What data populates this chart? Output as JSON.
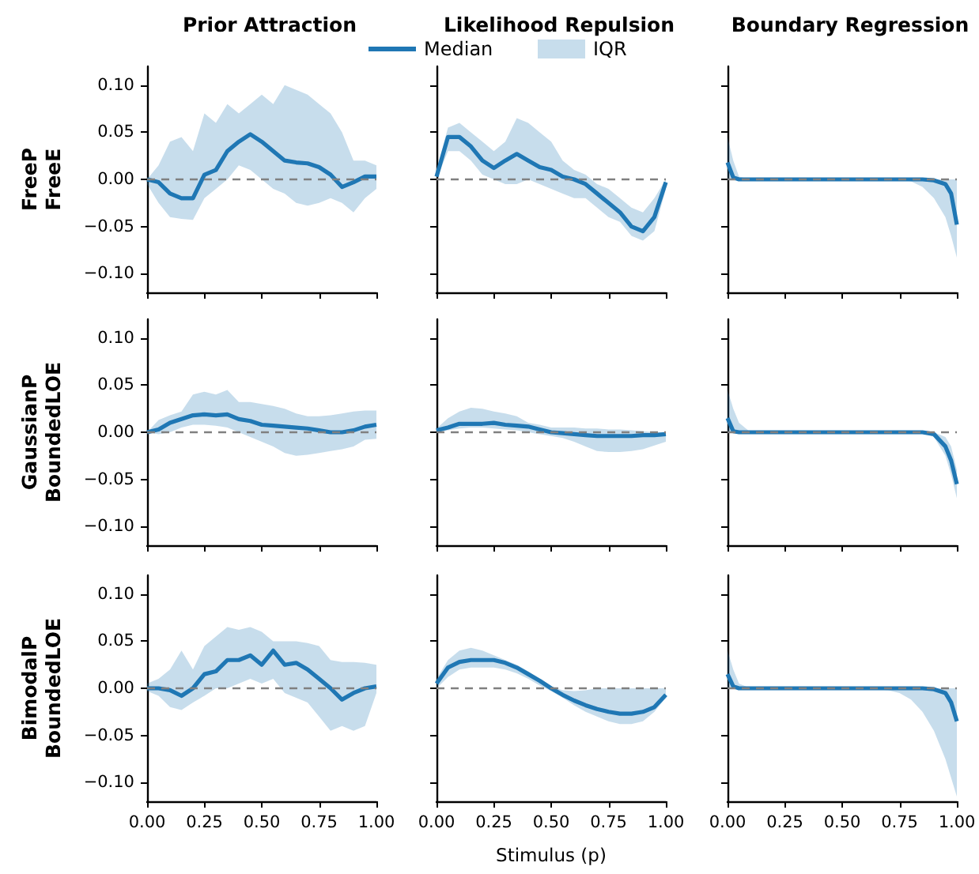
{
  "chart_data": [
    {
      "type": "line",
      "title": "Prior Attraction",
      "ylabel": "FreeP\nFreeE",
      "tick_labels": "y",
      "marker": "none",
      "grid": false,
      "x": [
        0,
        0.05,
        0.1,
        0.15,
        0.2,
        0.25,
        0.3,
        0.35,
        0.4,
        0.45,
        0.5,
        0.55,
        0.6,
        0.65,
        0.7,
        0.75,
        0.8,
        0.85,
        0.9,
        0.95,
        1
      ],
      "xlim": [
        0,
        1
      ],
      "xticks": [
        {
          "value": 0,
          "label": null
        },
        {
          "value": 0.25,
          "label": null
        },
        {
          "value": 0.5,
          "label": null
        },
        {
          "value": 0.75,
          "label": null
        },
        {
          "value": 1,
          "label": null
        }
      ],
      "ylim": [
        -0.12,
        0.12
      ],
      "yticks": [
        {
          "value": -0.1,
          "label": "−0.10"
        },
        {
          "value": -0.05,
          "label": "−0.05"
        },
        {
          "value": 0,
          "label": "0.00"
        },
        {
          "value": 0.05,
          "label": "0.05"
        },
        {
          "value": 0.1,
          "label": "0.10"
        }
      ],
      "ref_lines": [
        {
          "axis": "y",
          "value": 0,
          "color": "#808080",
          "line_style": "dashed"
        }
      ],
      "series": [
        {
          "color": "#1f77b4",
          "values": [
            0,
            -0.003,
            -0.015,
            -0.02,
            -0.02,
            0.005,
            0.01,
            0.03,
            0.04,
            0.048,
            0.04,
            0.03,
            0.02,
            0.018,
            0.017,
            0.013,
            0.005,
            -0.008,
            -0.003,
            0.003,
            0.003
          ],
          "lower": [
            -0.005,
            -0.025,
            -0.04,
            -0.042,
            -0.043,
            -0.02,
            -0.01,
            0,
            0.015,
            0.01,
            0,
            -0.01,
            -0.015,
            -0.025,
            -0.028,
            -0.025,
            -0.02,
            -0.025,
            -0.035,
            -0.02,
            -0.01
          ],
          "upper": [
            0,
            0.015,
            0.04,
            0.045,
            0.03,
            0.07,
            0.06,
            0.08,
            0.07,
            0.08,
            0.09,
            0.08,
            0.1,
            0.095,
            0.09,
            0.08,
            0.07,
            0.05,
            0.02,
            0.02,
            0.015
          ]
        }
      ]
    },
    {
      "type": "line",
      "title": "Likelihood Repulsion",
      "tick_labels": false,
      "marker": "none",
      "grid": false,
      "legend": "top",
      "annotations": [
        "IQR"
      ],
      "x": [
        0,
        0.05,
        0.1,
        0.15,
        0.2,
        0.25,
        0.3,
        0.35,
        0.4,
        0.45,
        0.5,
        0.55,
        0.6,
        0.65,
        0.7,
        0.75,
        0.8,
        0.85,
        0.9,
        0.95,
        1
      ],
      "xlim": [
        0,
        1
      ],
      "xticks": [
        {
          "value": 0,
          "label": null
        },
        {
          "value": 0.25,
          "label": null
        },
        {
          "value": 0.5,
          "label": null
        },
        {
          "value": 0.75,
          "label": null
        },
        {
          "value": 1,
          "label": null
        }
      ],
      "ylim": [
        -0.12,
        0.12
      ],
      "yticks": [
        {
          "value": -0.1,
          "label": null
        },
        {
          "value": -0.05,
          "label": null
        },
        {
          "value": 0,
          "label": null
        },
        {
          "value": 0.05,
          "label": null
        },
        {
          "value": 0.1,
          "label": null
        }
      ],
      "ref_lines": [
        {
          "axis": "y",
          "value": 0,
          "color": "#808080",
          "line_style": "dashed"
        }
      ],
      "series": [
        {
          "name": "Median",
          "color": "#1f77b4",
          "values": [
            0.003,
            0.045,
            0.045,
            0.035,
            0.02,
            0.012,
            0.02,
            0.027,
            0.02,
            0.013,
            0.01,
            0.003,
            0,
            -0.005,
            -0.015,
            -0.025,
            -0.035,
            -0.05,
            -0.055,
            -0.04,
            -0.003
          ],
          "lower": [
            0,
            0.03,
            0.03,
            0.02,
            0.005,
            0,
            -0.005,
            -0.005,
            0,
            -0.005,
            -0.01,
            -0.015,
            -0.02,
            -0.02,
            -0.03,
            -0.04,
            -0.045,
            -0.06,
            -0.065,
            -0.055,
            -0.01
          ],
          "upper": [
            0.01,
            0.055,
            0.06,
            0.05,
            0.04,
            0.03,
            0.04,
            0.065,
            0.06,
            0.05,
            0.04,
            0.02,
            0.01,
            0.005,
            -0.005,
            -0.01,
            -0.02,
            -0.03,
            -0.035,
            -0.02,
            0
          ]
        }
      ]
    },
    {
      "type": "line",
      "title": "Boundary Regression",
      "tick_labels": false,
      "marker": "none",
      "grid": false,
      "x": [
        0,
        0.025,
        0.05,
        0.1,
        0.2,
        0.3,
        0.4,
        0.5,
        0.6,
        0.7,
        0.75,
        0.8,
        0.85,
        0.9,
        0.95,
        0.975,
        1
      ],
      "xlim": [
        0,
        1
      ],
      "xticks": [
        {
          "value": 0,
          "label": null
        },
        {
          "value": 0.25,
          "label": null
        },
        {
          "value": 0.5,
          "label": null
        },
        {
          "value": 0.75,
          "label": null
        },
        {
          "value": 1,
          "label": null
        }
      ],
      "ylim": [
        -0.12,
        0.12
      ],
      "yticks": [
        {
          "value": -0.1,
          "label": null
        },
        {
          "value": -0.05,
          "label": null
        },
        {
          "value": 0,
          "label": null
        },
        {
          "value": 0.05,
          "label": null
        },
        {
          "value": 0.1,
          "label": null
        }
      ],
      "ref_lines": [
        {
          "axis": "y",
          "value": 0,
          "color": "#808080",
          "line_style": "dashed"
        }
      ],
      "series": [
        {
          "color": "#1f77b4",
          "values": [
            0.018,
            0.002,
            0,
            0,
            0,
            0,
            0,
            0,
            0,
            0,
            0,
            0,
            0,
            -0.001,
            -0.005,
            -0.015,
            -0.048
          ],
          "lower": [
            0,
            0,
            0,
            0,
            0,
            0,
            0,
            0,
            0,
            0,
            0,
            -0.002,
            -0.008,
            -0.02,
            -0.04,
            -0.06,
            -0.083
          ],
          "upper": [
            0.045,
            0.02,
            0.003,
            0,
            0,
            0,
            0,
            0,
            0,
            0,
            0,
            0,
            0,
            0,
            0,
            0,
            0
          ]
        }
      ]
    },
    {
      "type": "line",
      "ylabel": "GaussianP\nBoundedLOE",
      "tick_labels": "y",
      "marker": "none",
      "grid": false,
      "x": [
        0,
        0.05,
        0.1,
        0.15,
        0.2,
        0.25,
        0.3,
        0.35,
        0.4,
        0.45,
        0.5,
        0.55,
        0.6,
        0.65,
        0.7,
        0.75,
        0.8,
        0.85,
        0.9,
        0.95,
        1
      ],
      "xlim": [
        0,
        1
      ],
      "xticks": [
        {
          "value": 0,
          "label": null
        },
        {
          "value": 0.25,
          "label": null
        },
        {
          "value": 0.5,
          "label": null
        },
        {
          "value": 0.75,
          "label": null
        },
        {
          "value": 1,
          "label": null
        }
      ],
      "ylim": [
        -0.12,
        0.12
      ],
      "yticks": [
        {
          "value": -0.1,
          "label": "−0.10"
        },
        {
          "value": -0.05,
          "label": "−0.05"
        },
        {
          "value": 0,
          "label": "0.00"
        },
        {
          "value": 0.05,
          "label": "0.05"
        },
        {
          "value": 0.1,
          "label": "0.10"
        }
      ],
      "ref_lines": [
        {
          "axis": "y",
          "value": 0,
          "color": "#808080",
          "line_style": "dashed"
        }
      ],
      "series": [
        {
          "color": "#1f77b4",
          "values": [
            0,
            0.003,
            0.01,
            0.014,
            0.018,
            0.019,
            0.018,
            0.019,
            0.014,
            0.012,
            0.008,
            0.007,
            0.006,
            0.005,
            0.004,
            0.002,
            0,
            0,
            0.002,
            0.006,
            0.008
          ],
          "lower": [
            0,
            -0.002,
            0,
            0.005,
            0.008,
            0.008,
            0.007,
            0.005,
            0,
            -0.005,
            -0.01,
            -0.015,
            -0.022,
            -0.025,
            -0.024,
            -0.022,
            -0.02,
            -0.018,
            -0.015,
            -0.008,
            -0.007
          ],
          "upper": [
            0,
            0.013,
            0.018,
            0.022,
            0.04,
            0.043,
            0.04,
            0.045,
            0.032,
            0.032,
            0.03,
            0.028,
            0.025,
            0.02,
            0.017,
            0.017,
            0.018,
            0.02,
            0.022,
            0.023,
            0.023
          ]
        }
      ]
    },
    {
      "type": "line",
      "tick_labels": false,
      "marker": "none",
      "grid": false,
      "x": [
        0,
        0.05,
        0.1,
        0.15,
        0.2,
        0.25,
        0.3,
        0.35,
        0.4,
        0.45,
        0.5,
        0.55,
        0.6,
        0.65,
        0.7,
        0.75,
        0.8,
        0.85,
        0.9,
        0.95,
        1
      ],
      "xlim": [
        0,
        1
      ],
      "xticks": [
        {
          "value": 0,
          "label": null
        },
        {
          "value": 0.25,
          "label": null
        },
        {
          "value": 0.5,
          "label": null
        },
        {
          "value": 0.75,
          "label": null
        },
        {
          "value": 1,
          "label": null
        }
      ],
      "ylim": [
        -0.12,
        0.12
      ],
      "yticks": [
        {
          "value": -0.1,
          "label": null
        },
        {
          "value": -0.05,
          "label": null
        },
        {
          "value": 0,
          "label": null
        },
        {
          "value": 0.05,
          "label": null
        },
        {
          "value": 0.1,
          "label": null
        }
      ],
      "ref_lines": [
        {
          "axis": "y",
          "value": 0,
          "color": "#808080",
          "line_style": "dashed"
        }
      ],
      "series": [
        {
          "color": "#1f77b4",
          "values": [
            0.002,
            0.005,
            0.009,
            0.009,
            0.009,
            0.01,
            0.008,
            0.007,
            0.006,
            0.003,
            0,
            -0.001,
            -0.002,
            -0.003,
            -0.004,
            -0.004,
            -0.004,
            -0.004,
            -0.003,
            -0.003,
            -0.002
          ],
          "lower": [
            0,
            0.002,
            0.004,
            0.005,
            0.005,
            0.004,
            0.003,
            0.002,
            0,
            -0.002,
            -0.004,
            -0.006,
            -0.01,
            -0.015,
            -0.02,
            -0.021,
            -0.021,
            -0.02,
            -0.018,
            -0.014,
            -0.01
          ],
          "upper": [
            0.004,
            0.015,
            0.022,
            0.026,
            0.025,
            0.022,
            0.02,
            0.017,
            0.01,
            0.008,
            0.005,
            0.005,
            0.005,
            0.004,
            0.004,
            0.003,
            0.003,
            0.002,
            0.001,
            0,
            0
          ]
        }
      ]
    },
    {
      "type": "line",
      "tick_labels": false,
      "marker": "none",
      "grid": false,
      "x": [
        0,
        0.025,
        0.05,
        0.1,
        0.2,
        0.3,
        0.4,
        0.5,
        0.6,
        0.7,
        0.75,
        0.8,
        0.85,
        0.9,
        0.95,
        0.975,
        1
      ],
      "xlim": [
        0,
        1
      ],
      "xticks": [
        {
          "value": 0,
          "label": null
        },
        {
          "value": 0.25,
          "label": null
        },
        {
          "value": 0.5,
          "label": null
        },
        {
          "value": 0.75,
          "label": null
        },
        {
          "value": 1,
          "label": null
        }
      ],
      "ylim": [
        -0.12,
        0.12
      ],
      "yticks": [
        {
          "value": -0.1,
          "label": null
        },
        {
          "value": -0.05,
          "label": null
        },
        {
          "value": 0,
          "label": null
        },
        {
          "value": 0.05,
          "label": null
        },
        {
          "value": 0.1,
          "label": null
        }
      ],
      "ref_lines": [
        {
          "axis": "y",
          "value": 0,
          "color": "#808080",
          "line_style": "dashed"
        }
      ],
      "series": [
        {
          "color": "#1f77b4",
          "values": [
            0.015,
            0.001,
            0,
            0,
            0,
            0,
            0,
            0,
            0,
            0,
            0,
            0,
            0,
            -0.002,
            -0.015,
            -0.03,
            -0.055
          ],
          "lower": [
            0,
            0,
            0,
            0,
            0,
            0,
            0,
            0,
            0,
            0,
            0,
            0,
            0,
            -0.005,
            -0.025,
            -0.045,
            -0.07
          ],
          "upper": [
            0.045,
            0.025,
            0.01,
            0,
            0,
            0,
            0,
            0,
            0,
            0,
            0,
            0,
            0,
            0,
            -0.005,
            -0.015,
            -0.04
          ]
        }
      ]
    },
    {
      "type": "line",
      "ylabel": "BimodalP\nBoundedLOE",
      "marker": "none",
      "grid": false,
      "x": [
        0,
        0.05,
        0.1,
        0.15,
        0.2,
        0.25,
        0.3,
        0.35,
        0.4,
        0.45,
        0.5,
        0.55,
        0.6,
        0.65,
        0.7,
        0.75,
        0.8,
        0.85,
        0.9,
        0.95,
        1
      ],
      "xlim": [
        0,
        1
      ],
      "xticks": [
        {
          "value": 0,
          "label": "0.00"
        },
        {
          "value": 0.25,
          "label": "0.25"
        },
        {
          "value": 0.5,
          "label": "0.50"
        },
        {
          "value": 0.75,
          "label": "0.75"
        },
        {
          "value": 1,
          "label": "1.00"
        }
      ],
      "ylim": [
        -0.12,
        0.12
      ],
      "yticks": [
        {
          "value": -0.1,
          "label": "−0.10"
        },
        {
          "value": -0.05,
          "label": "−0.05"
        },
        {
          "value": 0,
          "label": "0.00"
        },
        {
          "value": 0.05,
          "label": "0.05"
        },
        {
          "value": 0.1,
          "label": "0.10"
        }
      ],
      "ref_lines": [
        {
          "axis": "y",
          "value": 0,
          "color": "#808080",
          "line_style": "dashed"
        }
      ],
      "series": [
        {
          "color": "#1f77b4",
          "values": [
            0,
            0,
            -0.002,
            -0.008,
            0,
            0.015,
            0.018,
            0.03,
            0.03,
            0.035,
            0.025,
            0.04,
            0.025,
            0.027,
            0.02,
            0.01,
            0,
            -0.012,
            -0.005,
            0,
            0.002
          ],
          "lower": [
            -0.003,
            -0.008,
            -0.02,
            -0.023,
            -0.015,
            -0.008,
            0,
            0,
            0.005,
            0.01,
            0.005,
            0.01,
            -0.005,
            -0.01,
            -0.015,
            -0.03,
            -0.045,
            -0.04,
            -0.045,
            -0.04,
            -0.005
          ],
          "upper": [
            0.005,
            0.01,
            0.02,
            0.04,
            0.02,
            0.045,
            0.055,
            0.065,
            0.062,
            0.065,
            0.06,
            0.05,
            0.05,
            0.05,
            0.048,
            0.045,
            0.03,
            0.028,
            0.028,
            0.027,
            0.025
          ]
        }
      ]
    },
    {
      "type": "line",
      "xlabel": "Stimulus (p)",
      "tick_labels": "x",
      "marker": "none",
      "grid": false,
      "x": [
        0,
        0.05,
        0.1,
        0.15,
        0.2,
        0.25,
        0.3,
        0.35,
        0.4,
        0.45,
        0.5,
        0.55,
        0.6,
        0.65,
        0.7,
        0.75,
        0.8,
        0.85,
        0.9,
        0.95,
        1
      ],
      "xlim": [
        0,
        1
      ],
      "xticks": [
        {
          "value": 0,
          "label": "0.00"
        },
        {
          "value": 0.25,
          "label": "0.25"
        },
        {
          "value": 0.5,
          "label": "0.50"
        },
        {
          "value": 0.75,
          "label": "0.75"
        },
        {
          "value": 1,
          "label": "1.00"
        }
      ],
      "ylim": [
        -0.12,
        0.12
      ],
      "yticks": [
        {
          "value": -0.1,
          "label": null
        },
        {
          "value": -0.05,
          "label": null
        },
        {
          "value": 0,
          "label": null
        },
        {
          "value": 0.05,
          "label": null
        },
        {
          "value": 0.1,
          "label": null
        }
      ],
      "ref_lines": [
        {
          "axis": "y",
          "value": 0,
          "color": "#808080",
          "line_style": "dashed"
        }
      ],
      "series": [
        {
          "color": "#1f77b4",
          "values": [
            0.005,
            0.022,
            0.028,
            0.03,
            0.03,
            0.03,
            0.027,
            0.022,
            0.015,
            0.008,
            0,
            -0.007,
            -0.013,
            -0.018,
            -0.022,
            -0.025,
            -0.027,
            -0.027,
            -0.025,
            -0.02,
            -0.007
          ],
          "lower": [
            0,
            0.012,
            0.02,
            0.022,
            0.022,
            0.022,
            0.02,
            0.016,
            0.01,
            0.003,
            -0.003,
            -0.01,
            -0.018,
            -0.025,
            -0.03,
            -0.035,
            -0.038,
            -0.038,
            -0.035,
            -0.025,
            -0.01
          ],
          "upper": [
            0.01,
            0.03,
            0.04,
            0.043,
            0.04,
            0.035,
            0.03,
            0.025,
            0.018,
            0.01,
            0.002,
            -0.002,
            -0.003,
            -0.002,
            0,
            0,
            0,
            0,
            0,
            0,
            0
          ]
        }
      ]
    },
    {
      "type": "line",
      "tick_labels": "x",
      "marker": "none",
      "grid": false,
      "x": [
        0,
        0.025,
        0.05,
        0.1,
        0.2,
        0.3,
        0.4,
        0.5,
        0.6,
        0.7,
        0.75,
        0.8,
        0.85,
        0.9,
        0.95,
        0.975,
        1
      ],
      "xlim": [
        0,
        1
      ],
      "xticks": [
        {
          "value": 0,
          "label": "0.00"
        },
        {
          "value": 0.25,
          "label": "0.25"
        },
        {
          "value": 0.5,
          "label": "0.50"
        },
        {
          "value": 0.75,
          "label": "0.75"
        },
        {
          "value": 1,
          "label": "1.00"
        }
      ],
      "ylim": [
        -0.12,
        0.12
      ],
      "yticks": [
        {
          "value": -0.1,
          "label": null
        },
        {
          "value": -0.05,
          "label": null
        },
        {
          "value": 0,
          "label": null
        },
        {
          "value": 0.05,
          "label": null
        },
        {
          "value": 0.1,
          "label": null
        }
      ],
      "ref_lines": [
        {
          "axis": "y",
          "value": 0,
          "color": "#808080",
          "line_style": "dashed"
        }
      ],
      "series": [
        {
          "color": "#1f77b4",
          "values": [
            0.015,
            0.002,
            0,
            0,
            0,
            0,
            0,
            0,
            0,
            0,
            0,
            0,
            0,
            -0.001,
            -0.005,
            -0.015,
            -0.035
          ],
          "lower": [
            0,
            0,
            0,
            0,
            0,
            0,
            0,
            0,
            0,
            -0.002,
            -0.005,
            -0.012,
            -0.025,
            -0.045,
            -0.075,
            -0.095,
            -0.115
          ],
          "upper": [
            0.04,
            0.02,
            0.005,
            0,
            0,
            0,
            0,
            0,
            0,
            0,
            0,
            0,
            0,
            0,
            0,
            0,
            0
          ]
        }
      ]
    }
  ]
}
